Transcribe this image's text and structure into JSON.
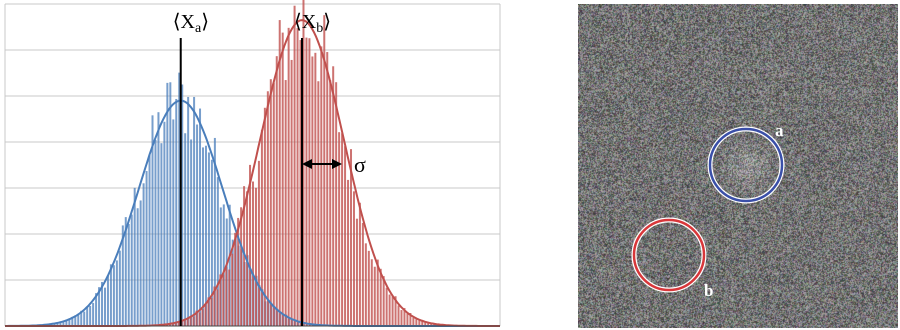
{
  "chart_data": {
    "type": "bar",
    "title": "",
    "xlabel": "",
    "ylabel": "",
    "grid": true,
    "series": [
      {
        "name": "",
        "color": "#4a7ebb",
        "mean": 0.355,
        "sigma": 0.085,
        "peak": 0.7
      },
      {
        "name": "",
        "color": "#c0504d",
        "mean": 0.6,
        "sigma": 0.085,
        "peak": 0.95
      }
    ],
    "annotations": {
      "mean_a": {
        "prefix": "⟨X",
        "sub": "a",
        "suffix": "⟩",
        "x": 0.355
      },
      "mean_b": {
        "prefix": "⟨X",
        "sub": "b",
        "suffix": "⟩",
        "x": 0.6
      },
      "sigma": {
        "text": "σ"
      }
    }
  },
  "image_panel": {
    "circle_a": {
      "label": "a",
      "color": "#3a4fa8"
    },
    "circle_b": {
      "label": "b",
      "color": "#d8373a"
    }
  }
}
